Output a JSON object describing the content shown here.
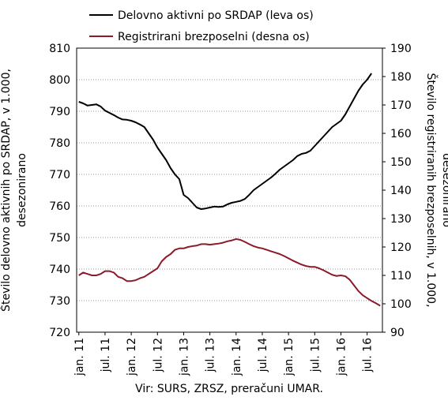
{
  "chart_data": {
    "type": "line",
    "categories": [
      "jan. 11",
      null,
      null,
      null,
      null,
      null,
      "jul. 11",
      null,
      null,
      null,
      null,
      null,
      "jan. 12",
      null,
      null,
      null,
      null,
      null,
      "jul. 12",
      null,
      null,
      null,
      null,
      null,
      "jan. 13",
      null,
      null,
      null,
      null,
      null,
      "jul. 13",
      null,
      null,
      null,
      null,
      null,
      "jan. 14",
      null,
      null,
      null,
      null,
      null,
      "jul. 14",
      null,
      null,
      null,
      null,
      null,
      "jan. 15",
      null,
      null,
      null,
      null,
      null,
      "jul. 15",
      null,
      null,
      null,
      null,
      null,
      "jan. 16",
      null,
      null,
      null,
      null,
      null,
      "jul. 16",
      null,
      null,
      null
    ],
    "series": [
      {
        "name": "Delovno aktivni po SRDAP (leva os)",
        "color": "#000000",
        "axis": "y",
        "values": [
          793,
          792.5,
          791.8,
          792,
          792.2,
          791.5,
          790.2,
          789.5,
          788.8,
          788,
          787.4,
          787.3,
          787,
          786.5,
          785.8,
          785,
          783,
          781,
          778.5,
          776.5,
          774.5,
          772,
          770,
          768.5,
          763.5,
          762.5,
          761,
          759.5,
          759,
          759.2,
          759.5,
          759.8,
          759.7,
          759.8,
          760.5,
          761,
          761.3,
          761.6,
          762.2,
          763.5,
          765,
          766,
          767,
          768,
          769,
          770.2,
          771.5,
          772.5,
          773.5,
          774.5,
          775.8,
          776.5,
          776.8,
          777.5,
          779,
          780.5,
          782,
          783.5,
          785,
          786,
          787,
          789,
          791.5,
          794,
          796.5,
          798.5,
          800,
          802,
          null,
          null
        ]
      },
      {
        "name": "Registrirani brezposelni (desna os)",
        "color": "#8b1a2b",
        "axis": "y2",
        "values": [
          110,
          111,
          110.5,
          110,
          110,
          110.5,
          111.5,
          111.5,
          111,
          109.5,
          109,
          108,
          108,
          108.3,
          109,
          109.5,
          110.5,
          111.5,
          112.5,
          115,
          116.5,
          117.5,
          119,
          119.5,
          119.5,
          120,
          120.3,
          120.5,
          121,
          121,
          120.8,
          121,
          121.2,
          121.5,
          122,
          122.3,
          122.8,
          122.5,
          121.8,
          121,
          120.3,
          119.8,
          119.5,
          119,
          118.5,
          118,
          117.5,
          116.8,
          116,
          115.2,
          114.5,
          113.8,
          113.3,
          113,
          113,
          112.5,
          111.8,
          111,
          110.2,
          109.8,
          110,
          109.7,
          108.5,
          106.5,
          104.5,
          103,
          102,
          101,
          100.2,
          99.3
        ]
      }
    ],
    "ylim": [
      720,
      810
    ],
    "yticks": [
      720,
      730,
      740,
      750,
      760,
      770,
      780,
      790,
      800,
      810
    ],
    "y2lim": [
      90,
      190
    ],
    "y2ticks": [
      90,
      100,
      110,
      120,
      130,
      140,
      150,
      160,
      170,
      180,
      190
    ],
    "ylabel": [
      "Število delovno aktivnih po SRDAP, v 1.000,",
      "desezonirano"
    ],
    "y2label": [
      "Število registriranih brezposelnih, v 1.000,",
      "desezonirano"
    ],
    "source": "Vir: SURS, ZRSZ, preračuni UMAR.",
    "grid": true
  }
}
